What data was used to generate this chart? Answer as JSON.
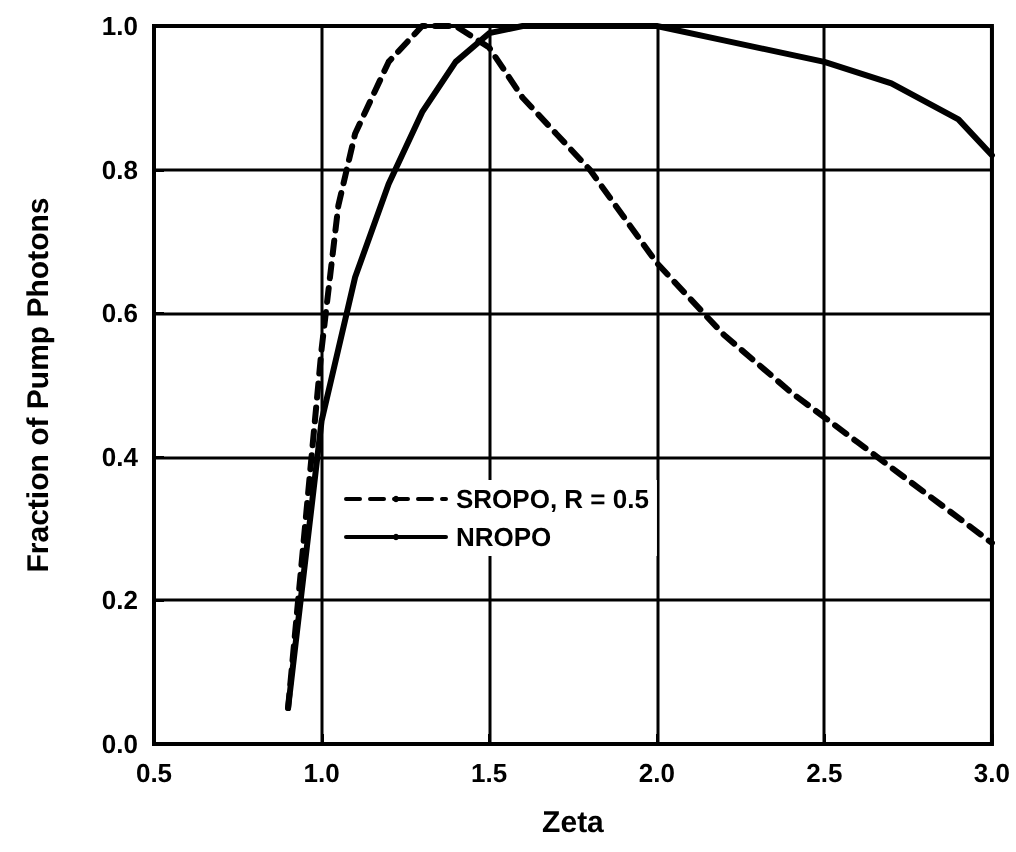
{
  "chart_data": {
    "type": "line",
    "xlabel": "Zeta",
    "ylabel": "Fraction of Pump Photons",
    "xlim": [
      0.5,
      3.0
    ],
    "ylim": [
      0,
      1.0
    ],
    "xticks": [
      {
        "value": 0.5,
        "label": "0.5"
      },
      {
        "value": 1,
        "label": "1.0"
      },
      {
        "value": 1.5,
        "label": "1.5"
      },
      {
        "value": 2,
        "label": "2.0"
      },
      {
        "value": 2.5,
        "label": "2.5"
      },
      {
        "value": 3,
        "label": "3.0"
      }
    ],
    "yticks": [
      {
        "value": 0,
        "label": "0.0"
      },
      {
        "value": 0.2,
        "label": "0.2"
      },
      {
        "value": 0.4,
        "label": "0.4"
      },
      {
        "value": 0.6,
        "label": "0.6"
      },
      {
        "value": 0.8,
        "label": "0.8"
      },
      {
        "value": 1,
        "label": "1.0"
      }
    ],
    "grid": true,
    "legend": "bottom left",
    "marker": "none",
    "series": [
      {
        "name": "SROPO, R = 0.5",
        "color": "#000000",
        "line_style": "dashed",
        "x": [
          0.9,
          0.95,
          1.0,
          1.05,
          1.1,
          1.2,
          1.3,
          1.4,
          1.5,
          1.6,
          1.7,
          1.8,
          2.0,
          2.2,
          2.4,
          2.6,
          2.8,
          3.0
        ],
        "values": [
          0.05,
          0.3,
          0.55,
          0.75,
          0.85,
          0.95,
          1.0,
          1.0,
          0.97,
          0.9,
          0.85,
          0.8,
          0.67,
          0.57,
          0.49,
          0.42,
          0.35,
          0.28
        ]
      },
      {
        "name": "NROPO",
        "color": "#000000",
        "line_style": "solid",
        "x": [
          0.9,
          0.95,
          1.0,
          1.05,
          1.1,
          1.2,
          1.3,
          1.4,
          1.5,
          1.6,
          1.75,
          2.0,
          2.2,
          2.5,
          2.7,
          2.9,
          3.0
        ],
        "values": [
          0.05,
          0.25,
          0.45,
          0.55,
          0.65,
          0.78,
          0.88,
          0.95,
          0.99,
          1.0,
          1.0,
          1.0,
          0.98,
          0.95,
          0.92,
          0.87,
          0.82
        ]
      }
    ]
  }
}
